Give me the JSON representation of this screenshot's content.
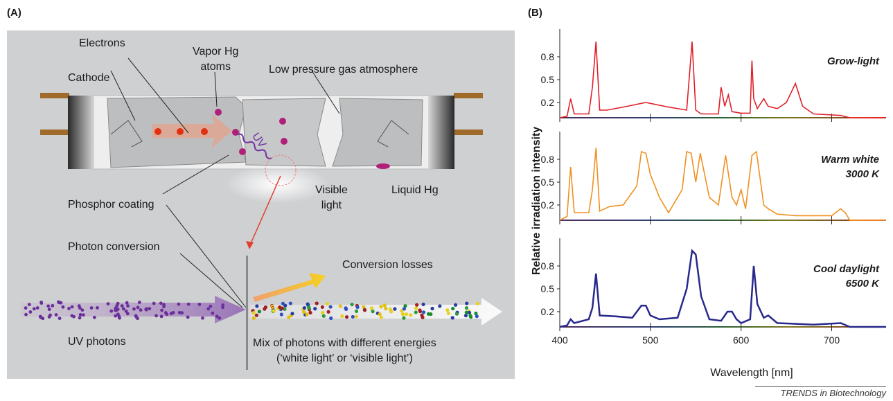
{
  "panels": {
    "a_label": "(A)",
    "b_label": "(B)"
  },
  "diagram": {
    "electrons": "Electrons",
    "vapor_hg_line1": "Vapor Hg",
    "vapor_hg_line2": "atoms",
    "low_pressure": "Low pressure gas atmosphere",
    "cathode": "Cathode",
    "uv": "UV",
    "visible_light_line1": "Visible",
    "visible_light_line2": "light",
    "liquid_hg": "Liquid Hg",
    "phosphor_coating": "Phosphor coating",
    "photon_conversion": "Photon conversion",
    "conversion_losses": "Conversion losses",
    "uv_photons": "UV photons",
    "mix_line1": "Mix of photons with different energies",
    "mix_line2": "(‘white light’ or ‘visible light’)"
  },
  "colors": {
    "grow": "#e0202a",
    "warm": "#f09020",
    "cool": "#28288c",
    "background": "#cfd0d2",
    "uv_photon": "#6a2f9a"
  },
  "chart_data": [
    {
      "type": "line",
      "title_line1": "Grow-light",
      "title_line2": "",
      "xlim": [
        400,
        760
      ],
      "ylim": [
        0,
        1
      ],
      "yticks": [
        "0.2",
        "0.5",
        "0.8"
      ],
      "series": [
        {
          "x": [
            400,
            408,
            412,
            416,
            432,
            436,
            440,
            444,
            452,
            470,
            495,
            520,
            540,
            546,
            550,
            556,
            575,
            578,
            582,
            586,
            590,
            600,
            610,
            612,
            614,
            618,
            625,
            630,
            640,
            650,
            660,
            668,
            680,
            710,
            720,
            760
          ],
          "y": [
            0.0,
            0.02,
            0.25,
            0.05,
            0.05,
            0.4,
            1.0,
            0.1,
            0.1,
            0.14,
            0.2,
            0.14,
            0.1,
            1.0,
            0.1,
            0.05,
            0.05,
            0.4,
            0.15,
            0.3,
            0.08,
            0.06,
            0.06,
            0.75,
            0.25,
            0.12,
            0.25,
            0.15,
            0.12,
            0.2,
            0.45,
            0.15,
            0.05,
            0.03,
            0.0,
            0.0
          ]
        }
      ]
    },
    {
      "type": "line",
      "title_line1": "Warm white",
      "title_line2": "3000 K",
      "xlim": [
        400,
        760
      ],
      "ylim": [
        0,
        1
      ],
      "yticks": [
        "0.2",
        "0.5",
        "0.8"
      ],
      "series": [
        {
          "x": [
            400,
            408,
            412,
            416,
            432,
            436,
            440,
            444,
            455,
            470,
            485,
            490,
            495,
            500,
            510,
            520,
            535,
            540,
            545,
            550,
            555,
            565,
            575,
            583,
            590,
            595,
            600,
            605,
            612,
            617,
            625,
            630,
            640,
            660,
            680,
            700,
            710,
            715,
            720,
            760
          ],
          "y": [
            0.0,
            0.05,
            0.7,
            0.1,
            0.1,
            0.4,
            0.95,
            0.12,
            0.18,
            0.2,
            0.45,
            0.9,
            0.88,
            0.6,
            0.3,
            0.1,
            0.4,
            0.9,
            0.88,
            0.5,
            0.88,
            0.3,
            0.2,
            0.85,
            0.3,
            0.2,
            0.4,
            0.15,
            0.85,
            0.9,
            0.2,
            0.15,
            0.08,
            0.06,
            0.06,
            0.06,
            0.15,
            0.1,
            0.0,
            0.0
          ]
        }
      ]
    },
    {
      "type": "line",
      "title_line1": "Cool daylight",
      "title_line2": "6500 K",
      "xlim": [
        400,
        760
      ],
      "ylim": [
        0,
        1
      ],
      "yticks": [
        "0.2",
        "0.5",
        "0.8"
      ],
      "series": [
        {
          "x": [
            400,
            408,
            412,
            416,
            432,
            436,
            440,
            444,
            460,
            480,
            490,
            495,
            500,
            510,
            530,
            540,
            546,
            550,
            556,
            565,
            578,
            585,
            590,
            595,
            600,
            610,
            614,
            618,
            625,
            630,
            640,
            680,
            710,
            720,
            760
          ],
          "y": [
            0.0,
            0.02,
            0.1,
            0.05,
            0.1,
            0.25,
            0.7,
            0.15,
            0.14,
            0.12,
            0.28,
            0.28,
            0.15,
            0.1,
            0.12,
            0.5,
            1.0,
            0.95,
            0.4,
            0.1,
            0.08,
            0.2,
            0.2,
            0.1,
            0.05,
            0.1,
            0.8,
            0.3,
            0.12,
            0.15,
            0.05,
            0.03,
            0.05,
            0.0,
            0.0
          ]
        }
      ]
    }
  ],
  "axes": {
    "x_ticks": [
      "400",
      "500",
      "600",
      "700"
    ],
    "x_label": "Wavelength [nm]",
    "y_label": "Relative irradiation intensity"
  },
  "source": "TRENDS in Biotechnology"
}
